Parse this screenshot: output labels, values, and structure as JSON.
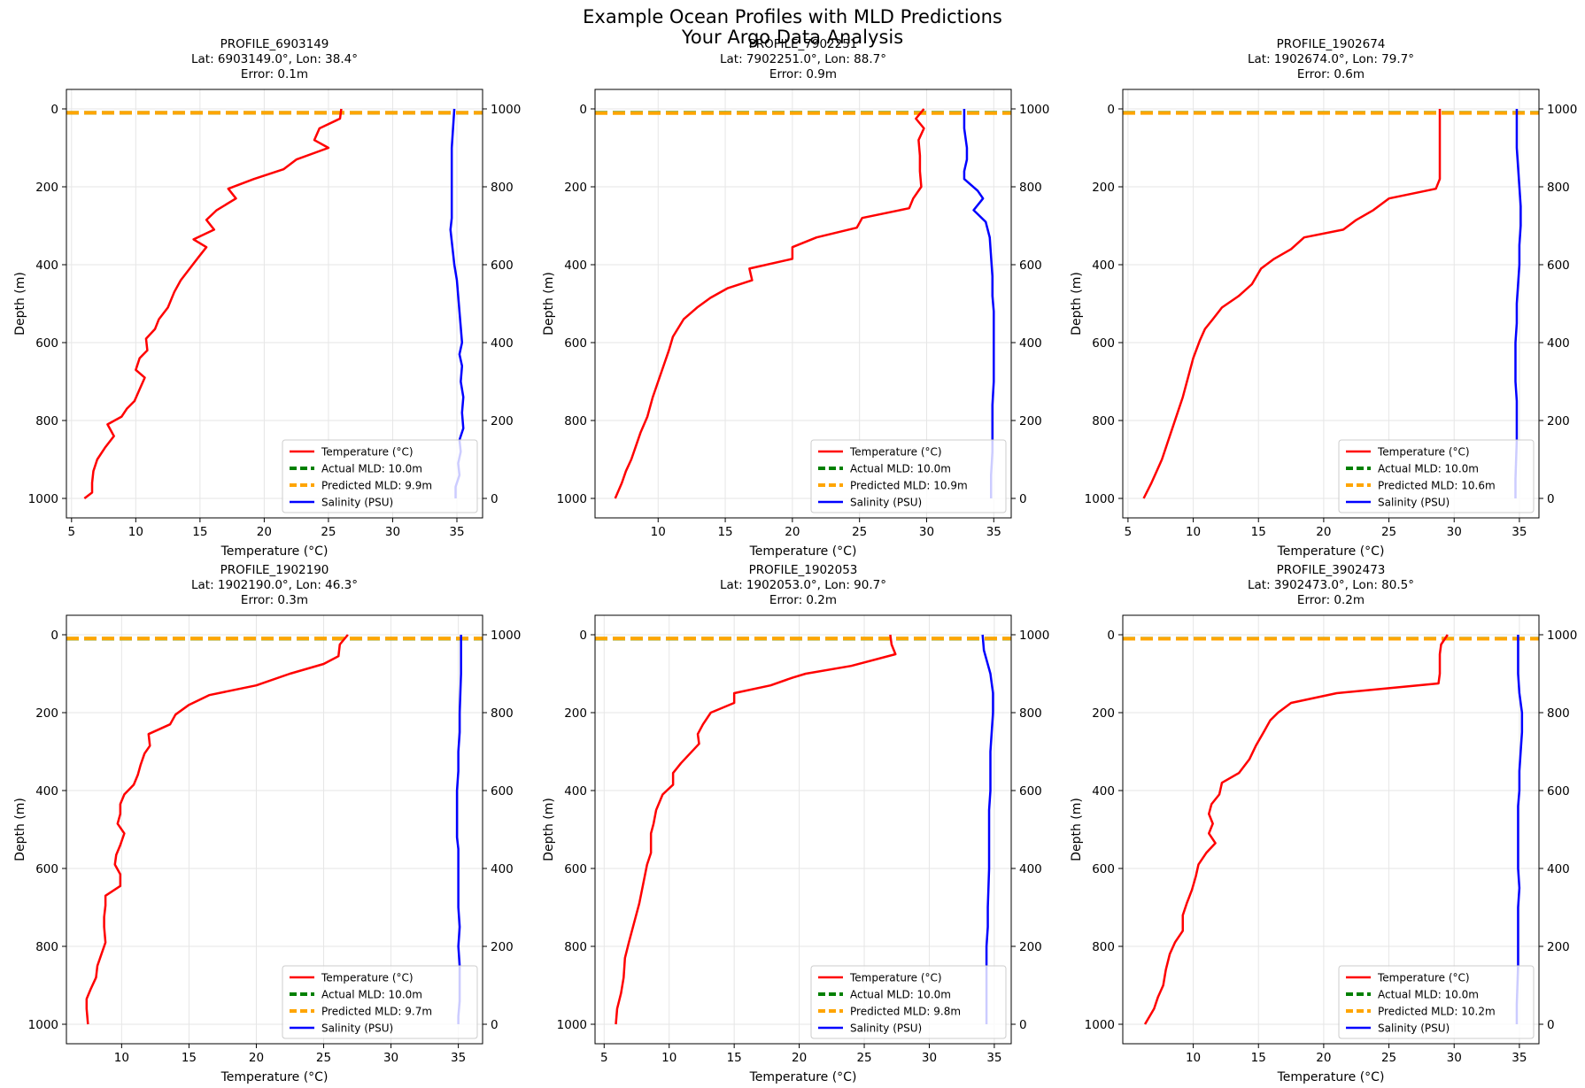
{
  "figure": {
    "title_line1": "Example Ocean Profiles with MLD Predictions",
    "title_line2": "Your Argo Data Analysis"
  },
  "colors": {
    "temperature": "#ff0000",
    "salinity": "#0000ff",
    "actual_mld": "#008000",
    "predicted_mld": "#ffa500",
    "grid": "#e6e6e6"
  },
  "chart_data": [
    {
      "type": "line",
      "title": "PROFILE_6903149",
      "subtitle": "Lat: 6903149.0°, Lon: 38.4°",
      "error_text": "Error: 0.1m",
      "xlabel": "Temperature (°C)",
      "ylabel": "Depth (m)",
      "xlim": [
        4.6,
        37.0
      ],
      "ylim": [
        1050,
        -50
      ],
      "xticks": [
        5,
        10,
        15,
        20,
        25,
        30,
        35
      ],
      "yticks": [
        0,
        200,
        400,
        600,
        800,
        1000
      ],
      "y2ticks": [
        0,
        200,
        400,
        600,
        800,
        1000
      ],
      "grid": true,
      "legend_position": "lower right",
      "actual_mld": 10.0,
      "predicted_mld": 9.9,
      "series": [
        {
          "name": "Temperature (°C)",
          "key": "temperature",
          "x": [
            26.0,
            25.9,
            24.3,
            23.9,
            25.0,
            22.5,
            21.5,
            19.2,
            17.2,
            17.8,
            16.3,
            15.5,
            16.1,
            14.5,
            15.5,
            14.9,
            14.2,
            13.5,
            13.0,
            12.5,
            11.8,
            11.5,
            10.8,
            10.9,
            10.3,
            10.0,
            10.7,
            10.3,
            9.9,
            9.3,
            8.9,
            7.8,
            8.3,
            7.6,
            7.0,
            6.7,
            6.6,
            6.6,
            6.0
          ],
          "y": [
            0,
            25,
            50,
            80,
            100,
            130,
            155,
            180,
            205,
            230,
            260,
            285,
            310,
            335,
            355,
            380,
            410,
            440,
            470,
            510,
            540,
            565,
            590,
            620,
            640,
            670,
            690,
            720,
            750,
            770,
            790,
            810,
            840,
            870,
            900,
            930,
            960,
            985,
            1000
          ]
        },
        {
          "name": "Salinity (PSU)",
          "key": "salinity",
          "x": [
            34.8,
            34.7,
            34.6,
            34.6,
            34.6,
            34.6,
            34.6,
            34.5,
            34.6,
            34.7,
            34.8,
            35.0,
            35.1,
            35.2,
            35.3,
            35.4,
            35.2,
            35.4,
            35.3,
            35.5,
            35.4,
            35.5,
            35.2,
            35.3,
            35.1,
            35.2,
            34.9,
            34.9
          ],
          "y": [
            1000,
            950,
            900,
            850,
            800,
            760,
            720,
            690,
            660,
            630,
            600,
            560,
            520,
            480,
            440,
            400,
            370,
            340,
            300,
            260,
            220,
            180,
            150,
            120,
            90,
            60,
            30,
            0
          ]
        }
      ]
    },
    {
      "type": "line",
      "title": "PROFILE_7902251",
      "subtitle": "Lat: 7902251.0°, Lon: 88.7°",
      "error_text": "Error: 0.9m",
      "xlabel": "Temperature (°C)",
      "ylabel": "Depth (m)",
      "xlim": [
        5.3,
        36.3
      ],
      "ylim": [
        1050,
        -50
      ],
      "xticks": [
        10,
        15,
        20,
        25,
        30,
        35
      ],
      "yticks": [
        0,
        200,
        400,
        600,
        800,
        1000
      ],
      "y2ticks": [
        0,
        200,
        400,
        600,
        800,
        1000
      ],
      "grid": true,
      "legend_position": "lower right",
      "actual_mld": 10.0,
      "predicted_mld": 10.9,
      "series": [
        {
          "name": "Temperature (°C)",
          "key": "temperature",
          "x": [
            29.8,
            29.2,
            29.8,
            29.4,
            29.5,
            29.5,
            29.6,
            29.0,
            28.7,
            25.2,
            24.8,
            21.8,
            20.0,
            20.0,
            16.8,
            17.0,
            15.2,
            13.9,
            12.9,
            11.9,
            11.1,
            10.8,
            10.4,
            10.0,
            9.6,
            9.2,
            8.7,
            8.3,
            8.0,
            7.6,
            7.3,
            6.8
          ],
          "y": [
            0,
            25,
            50,
            80,
            120,
            160,
            200,
            230,
            255,
            280,
            305,
            330,
            355,
            385,
            410,
            440,
            460,
            485,
            510,
            540,
            585,
            620,
            660,
            700,
            740,
            790,
            830,
            870,
            900,
            930,
            960,
            1000
          ]
        },
        {
          "name": "Salinity (PSU)",
          "key": "salinity",
          "x": [
            32.8,
            32.8,
            33.0,
            33.0,
            32.8,
            32.8,
            33.8,
            34.2,
            33.5,
            34.4,
            34.7,
            34.8,
            34.9,
            34.9,
            35.0,
            35.0,
            35.0,
            35.0,
            34.9,
            34.9,
            34.9,
            34.8,
            34.8
          ],
          "y": [
            1000,
            950,
            900,
            870,
            840,
            820,
            790,
            770,
            740,
            710,
            670,
            620,
            570,
            520,
            480,
            420,
            360,
            300,
            240,
            180,
            120,
            60,
            0
          ]
        }
      ]
    },
    {
      "type": "line",
      "title": "PROFILE_1902674",
      "subtitle": "Lat: 1902674.0°, Lon: 79.7°",
      "error_text": "Error: 0.6m",
      "xlabel": "Temperature (°C)",
      "ylabel": "Depth (m)",
      "xlim": [
        4.6,
        36.5
      ],
      "ylim": [
        1050,
        -50
      ],
      "xticks": [
        5,
        10,
        15,
        20,
        25,
        30,
        35
      ],
      "yticks": [
        0,
        200,
        400,
        600,
        800,
        1000
      ],
      "y2ticks": [
        0,
        200,
        400,
        600,
        800,
        1000
      ],
      "grid": true,
      "legend_position": "lower right",
      "actual_mld": 10.0,
      "predicted_mld": 10.6,
      "series": [
        {
          "name": "Temperature (°C)",
          "key": "temperature",
          "x": [
            28.9,
            28.9,
            28.9,
            28.9,
            28.9,
            28.6,
            25.0,
            23.8,
            22.5,
            21.5,
            18.5,
            17.5,
            16.2,
            15.2,
            14.5,
            13.5,
            12.2,
            11.5,
            10.9,
            10.5,
            10.0,
            9.6,
            9.2,
            8.8,
            8.4,
            8.0,
            7.6,
            7.2,
            6.8,
            6.2
          ],
          "y": [
            0,
            40,
            100,
            150,
            180,
            205,
            230,
            260,
            285,
            310,
            330,
            360,
            385,
            410,
            450,
            480,
            510,
            540,
            565,
            595,
            640,
            690,
            740,
            780,
            820,
            860,
            900,
            930,
            960,
            1000
          ]
        },
        {
          "name": "Salinity (PSU)",
          "key": "salinity",
          "x": [
            34.8,
            34.8,
            34.9,
            35.0,
            35.1,
            35.1,
            35.0,
            35.0,
            34.9,
            34.8,
            34.8,
            34.7,
            34.7,
            34.7,
            34.8,
            34.8,
            34.8,
            34.7,
            34.7
          ],
          "y": [
            1000,
            900,
            850,
            800,
            750,
            700,
            650,
            600,
            550,
            500,
            450,
            400,
            350,
            300,
            250,
            200,
            150,
            50,
            0
          ]
        }
      ]
    },
    {
      "type": "line",
      "title": "PROFILE_1902190",
      "subtitle": "Lat: 1902190.0°, Lon: 46.3°",
      "error_text": "Error: 0.3m",
      "xlabel": "Temperature (°C)",
      "ylabel": "Depth (m)",
      "xlim": [
        5.9,
        36.8
      ],
      "ylim": [
        1050,
        -50
      ],
      "xticks": [
        10,
        15,
        20,
        25,
        30,
        35
      ],
      "yticks": [
        0,
        200,
        400,
        600,
        800,
        1000
      ],
      "y2ticks": [
        0,
        200,
        400,
        600,
        800,
        1000
      ],
      "grid": true,
      "legend_position": "lower right",
      "actual_mld": 10.0,
      "predicted_mld": 9.7,
      "series": [
        {
          "name": "Temperature (°C)",
          "key": "temperature",
          "x": [
            26.8,
            26.2,
            26.1,
            25.0,
            22.5,
            20.0,
            16.5,
            15.0,
            14.0,
            13.6,
            12.0,
            12.1,
            11.7,
            11.4,
            11.2,
            10.9,
            10.2,
            9.9,
            9.9,
            9.7,
            10.2,
            9.9,
            9.6,
            9.5,
            9.9,
            9.9,
            8.8,
            8.8,
            8.7,
            8.7,
            8.8,
            8.5,
            8.2,
            8.1,
            7.7,
            7.4,
            7.4,
            7.5
          ],
          "y": [
            0,
            25,
            55,
            75,
            100,
            130,
            155,
            180,
            205,
            230,
            255,
            285,
            305,
            335,
            360,
            385,
            410,
            435,
            460,
            485,
            510,
            540,
            565,
            590,
            615,
            645,
            670,
            695,
            725,
            750,
            790,
            820,
            850,
            880,
            910,
            935,
            960,
            1000
          ]
        },
        {
          "name": "Salinity (PSU)",
          "key": "salinity",
          "x": [
            35.2,
            35.2,
            35.1,
            35.1,
            35.0,
            35.0,
            34.9,
            34.9,
            34.9,
            34.9,
            35.0,
            35.0,
            35.0,
            35.0,
            35.1,
            35.0,
            35.1,
            35.1,
            35.1,
            35.0,
            35.0
          ],
          "y": [
            1000,
            900,
            800,
            750,
            700,
            650,
            600,
            550,
            500,
            480,
            450,
            400,
            350,
            300,
            250,
            200,
            150,
            100,
            60,
            20,
            0
          ]
        }
      ]
    },
    {
      "type": "line",
      "title": "PROFILE_1902053",
      "subtitle": "Lat: 1902053.0°, Lon: 90.7°",
      "error_text": "Error: 0.2m",
      "xlabel": "Temperature (°C)",
      "ylabel": "Depth (m)",
      "xlim": [
        4.3,
        36.3
      ],
      "ylim": [
        1050,
        -50
      ],
      "xticks": [
        5,
        10,
        15,
        20,
        25,
        30,
        35
      ],
      "yticks": [
        0,
        200,
        400,
        600,
        800,
        1000
      ],
      "y2ticks": [
        0,
        200,
        400,
        600,
        800,
        1000
      ],
      "grid": true,
      "legend_position": "lower right",
      "actual_mld": 10.0,
      "predicted_mld": 9.8,
      "series": [
        {
          "name": "Temperature (°C)",
          "key": "temperature",
          "x": [
            27.0,
            27.1,
            27.4,
            24.0,
            20.5,
            19.5,
            17.8,
            15.0,
            15.0,
            13.2,
            12.6,
            12.2,
            12.3,
            11.6,
            10.9,
            10.3,
            10.3,
            9.5,
            9.0,
            8.8,
            8.6,
            8.6,
            8.3,
            8.0,
            7.7,
            7.3,
            6.9,
            6.6,
            6.5,
            6.3,
            6.0,
            5.9
          ],
          "y": [
            0,
            25,
            50,
            80,
            100,
            110,
            130,
            150,
            175,
            200,
            230,
            255,
            280,
            305,
            330,
            355,
            385,
            410,
            450,
            485,
            510,
            560,
            590,
            640,
            690,
            740,
            790,
            830,
            880,
            920,
            960,
            1000
          ]
        },
        {
          "name": "Salinity (PSU)",
          "key": "salinity",
          "x": [
            34.1,
            34.2,
            34.7,
            34.9,
            34.9,
            34.8,
            34.7,
            34.7,
            34.6,
            34.6,
            34.6,
            34.5,
            34.5,
            34.4,
            34.4,
            34.4,
            34.4
          ],
          "y": [
            1000,
            960,
            900,
            850,
            800,
            750,
            700,
            600,
            550,
            500,
            400,
            300,
            250,
            200,
            100,
            50,
            0
          ]
        }
      ]
    },
    {
      "type": "line",
      "title": "PROFILE_3902473",
      "subtitle": "Lat: 3902473.0°, Lon: 80.5°",
      "error_text": "Error: 0.2m",
      "xlabel": "Temperature (°C)",
      "ylabel": "Depth (m)",
      "xlim": [
        4.6,
        36.5
      ],
      "ylim": [
        1050,
        -50
      ],
      "xticks": [
        10,
        15,
        20,
        25,
        30,
        35
      ],
      "yticks": [
        0,
        200,
        400,
        600,
        800,
        1000
      ],
      "y2ticks": [
        0,
        200,
        400,
        600,
        800,
        1000
      ],
      "grid": true,
      "legend_position": "lower right",
      "actual_mld": 10.0,
      "predicted_mld": 10.2,
      "series": [
        {
          "name": "Temperature (°C)",
          "key": "temperature",
          "x": [
            29.5,
            29.0,
            28.9,
            28.9,
            28.9,
            28.8,
            21.0,
            17.5,
            16.5,
            15.9,
            15.4,
            14.8,
            14.3,
            13.5,
            12.2,
            12.0,
            11.4,
            11.2,
            11.5,
            11.2,
            11.7,
            11.0,
            10.4,
            10.2,
            9.9,
            9.5,
            9.2,
            9.2,
            8.6,
            8.2,
            7.9,
            7.7,
            7.3,
            7.0,
            6.3
          ],
          "y": [
            0,
            25,
            50,
            80,
            100,
            125,
            150,
            175,
            200,
            220,
            250,
            285,
            320,
            355,
            380,
            410,
            435,
            460,
            485,
            510,
            535,
            560,
            590,
            620,
            655,
            690,
            720,
            760,
            790,
            820,
            860,
            900,
            930,
            960,
            1000
          ]
        },
        {
          "name": "Salinity (PSU)",
          "key": "salinity",
          "x": [
            34.9,
            34.9,
            34.9,
            35.0,
            35.2,
            35.2,
            35.1,
            35.0,
            35.0,
            34.9,
            34.9,
            34.9,
            34.9,
            35.0,
            34.9,
            34.9,
            34.9,
            34.9,
            34.8,
            34.8
          ],
          "y": [
            1000,
            960,
            900,
            850,
            800,
            750,
            700,
            650,
            600,
            560,
            500,
            450,
            400,
            350,
            300,
            250,
            200,
            150,
            50,
            0
          ]
        }
      ]
    }
  ]
}
